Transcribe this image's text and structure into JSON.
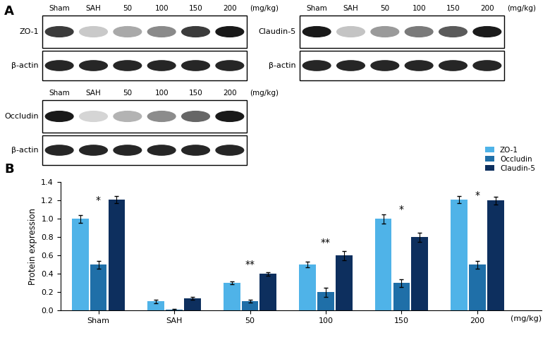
{
  "panel_labels": [
    "A",
    "B"
  ],
  "blots": [
    {
      "protein": "ZO-1",
      "control": "β-actin",
      "lanes": [
        "Sham",
        "SAH",
        "50",
        "100",
        "150",
        "200"
      ],
      "unit": "(mg/kg)"
    },
    {
      "protein": "Claudin-5",
      "control": "β-actin",
      "lanes": [
        "Sham",
        "SAH",
        "50",
        "100",
        "150",
        "200"
      ],
      "unit": "(mg/kg)"
    },
    {
      "protein": "Occludin",
      "control": "β-actin",
      "lanes": [
        "Sham",
        "SAH",
        "50",
        "100",
        "150",
        "200"
      ],
      "unit": "(mg/kg)"
    }
  ],
  "chart_data": {
    "type": "bar",
    "ylabel": "Protein expression",
    "x_unit": "(mg/kg)",
    "categories": [
      "Sham",
      "SAH",
      "50",
      "100",
      "150",
      "200"
    ],
    "series": [
      {
        "name": "ZO-1",
        "color": "#4fb3e8",
        "values": [
          1.0,
          0.1,
          0.3,
          0.5,
          1.0,
          1.21
        ],
        "errors": [
          0.04,
          0.02,
          0.015,
          0.03,
          0.05,
          0.04
        ]
      },
      {
        "name": "Occludin",
        "color": "#1f6fa8",
        "values": [
          0.5,
          0.01,
          0.1,
          0.2,
          0.3,
          0.5
        ],
        "errors": [
          0.04,
          0.01,
          0.015,
          0.05,
          0.04,
          0.04
        ]
      },
      {
        "name": "Claudin-5",
        "color": "#0d2f5e",
        "values": [
          1.21,
          0.13,
          0.4,
          0.6,
          0.8,
          1.2
        ],
        "errors": [
          0.04,
          0.015,
          0.02,
          0.05,
          0.05,
          0.04
        ]
      }
    ],
    "ylim": [
      0.0,
      1.4
    ],
    "yticks": [
      {
        "value": 0.0,
        "label": "0.0"
      },
      {
        "value": 0.2,
        "label": "0.2"
      },
      {
        "value": 0.4,
        "label": "0.4"
      },
      {
        "value": 0.6,
        "label": "0.6"
      },
      {
        "value": 0.8,
        "label": "0.8"
      },
      {
        "value": 1.0,
        "label": "1.0"
      },
      {
        "value": 1.2,
        "label": "1.2"
      },
      {
        "value": 1.4,
        "label": "1.4"
      }
    ],
    "annotations": [
      {
        "text": "*",
        "category": "Sham",
        "y": 1.2
      },
      {
        "text": "**",
        "category": "50",
        "y": 0.5
      },
      {
        "text": "**",
        "category": "100",
        "y": 0.74
      },
      {
        "text": "*",
        "category": "150",
        "y": 1.1
      },
      {
        "text": "*",
        "category": "200",
        "y": 1.26
      }
    ],
    "legend": "upper right",
    "grid": false
  }
}
